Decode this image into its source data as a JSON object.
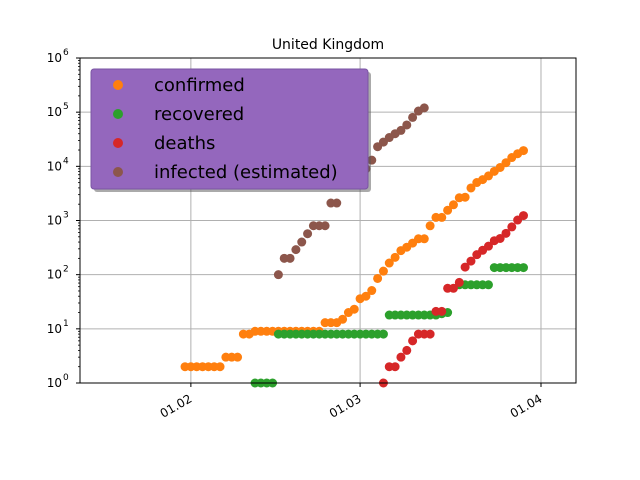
{
  "chart_data": {
    "type": "scatter",
    "title": "United Kingdom",
    "xlabel": "",
    "ylabel": "",
    "x_tick_labels": [
      "01.02",
      "01.03",
      "01.04"
    ],
    "yscale": "log",
    "ylim": [
      1,
      1000000
    ],
    "xlim": [
      "2020-01-13",
      "2020-04-07"
    ],
    "y_ticks": [
      {
        "base": "10",
        "exp": "0"
      },
      {
        "base": "10",
        "exp": "1"
      },
      {
        "base": "10",
        "exp": "2"
      },
      {
        "base": "10",
        "exp": "3"
      },
      {
        "base": "10",
        "exp": "4"
      },
      {
        "base": "10",
        "exp": "5"
      },
      {
        "base": "10",
        "exp": "6"
      }
    ],
    "grid": true,
    "legend_position": "top-left",
    "series": [
      {
        "name": "confirmed",
        "color": "#ff7f0e",
        "points": [
          [
            "2020-01-31",
            2
          ],
          [
            "2020-02-01",
            2
          ],
          [
            "2020-02-02",
            2
          ],
          [
            "2020-02-03",
            2
          ],
          [
            "2020-02-04",
            2
          ],
          [
            "2020-02-05",
            2
          ],
          [
            "2020-02-06",
            2
          ],
          [
            "2020-02-07",
            3
          ],
          [
            "2020-02-08",
            3
          ],
          [
            "2020-02-09",
            3
          ],
          [
            "2020-02-10",
            8
          ],
          [
            "2020-02-11",
            8
          ],
          [
            "2020-02-12",
            9
          ],
          [
            "2020-02-13",
            9
          ],
          [
            "2020-02-14",
            9
          ],
          [
            "2020-02-15",
            9
          ],
          [
            "2020-02-16",
            9
          ],
          [
            "2020-02-17",
            9
          ],
          [
            "2020-02-18",
            9
          ],
          [
            "2020-02-19",
            9
          ],
          [
            "2020-02-20",
            9
          ],
          [
            "2020-02-21",
            9
          ],
          [
            "2020-02-22",
            9
          ],
          [
            "2020-02-23",
            9
          ],
          [
            "2020-02-24",
            13
          ],
          [
            "2020-02-25",
            13
          ],
          [
            "2020-02-26",
            13
          ],
          [
            "2020-02-27",
            15
          ],
          [
            "2020-02-28",
            20
          ],
          [
            "2020-02-29",
            23
          ],
          [
            "2020-03-01",
            36
          ],
          [
            "2020-03-02",
            40
          ],
          [
            "2020-03-03",
            51
          ],
          [
            "2020-03-04",
            85
          ],
          [
            "2020-03-05",
            116
          ],
          [
            "2020-03-06",
            164
          ],
          [
            "2020-03-07",
            209
          ],
          [
            "2020-03-08",
            278
          ],
          [
            "2020-03-09",
            321
          ],
          [
            "2020-03-10",
            383
          ],
          [
            "2020-03-11",
            460
          ],
          [
            "2020-03-12",
            460
          ],
          [
            "2020-03-13",
            798
          ],
          [
            "2020-03-14",
            1140
          ],
          [
            "2020-03-15",
            1140
          ],
          [
            "2020-03-16",
            1543
          ],
          [
            "2020-03-17",
            1950
          ],
          [
            "2020-03-18",
            2626
          ],
          [
            "2020-03-19",
            2689
          ],
          [
            "2020-03-20",
            3983
          ],
          [
            "2020-03-21",
            5018
          ],
          [
            "2020-03-22",
            5683
          ],
          [
            "2020-03-23",
            6650
          ],
          [
            "2020-03-24",
            8077
          ],
          [
            "2020-03-25",
            9529
          ],
          [
            "2020-03-26",
            11658
          ],
          [
            "2020-03-27",
            14543
          ],
          [
            "2020-03-28",
            17089
          ],
          [
            "2020-03-29",
            19522
          ]
        ]
      },
      {
        "name": "recovered",
        "color": "#2ca02c",
        "points": [
          [
            "2020-02-12",
            1
          ],
          [
            "2020-02-13",
            1
          ],
          [
            "2020-02-14",
            1
          ],
          [
            "2020-02-15",
            1
          ],
          [
            "2020-02-16",
            8
          ],
          [
            "2020-02-17",
            8
          ],
          [
            "2020-02-18",
            8
          ],
          [
            "2020-02-19",
            8
          ],
          [
            "2020-02-20",
            8
          ],
          [
            "2020-02-21",
            8
          ],
          [
            "2020-02-22",
            8
          ],
          [
            "2020-02-23",
            8
          ],
          [
            "2020-02-24",
            8
          ],
          [
            "2020-02-25",
            8
          ],
          [
            "2020-02-26",
            8
          ],
          [
            "2020-02-27",
            8
          ],
          [
            "2020-02-28",
            8
          ],
          [
            "2020-02-29",
            8
          ],
          [
            "2020-03-01",
            8
          ],
          [
            "2020-03-02",
            8
          ],
          [
            "2020-03-03",
            8
          ],
          [
            "2020-03-04",
            8
          ],
          [
            "2020-03-05",
            8
          ],
          [
            "2020-03-06",
            18
          ],
          [
            "2020-03-07",
            18
          ],
          [
            "2020-03-08",
            18
          ],
          [
            "2020-03-09",
            18
          ],
          [
            "2020-03-10",
            18
          ],
          [
            "2020-03-11",
            18
          ],
          [
            "2020-03-12",
            18
          ],
          [
            "2020-03-13",
            18
          ],
          [
            "2020-03-14",
            18
          ],
          [
            "2020-03-15",
            19
          ],
          [
            "2020-03-16",
            20
          ],
          [
            "2020-03-18",
            65
          ],
          [
            "2020-03-19",
            65
          ],
          [
            "2020-03-20",
            65
          ],
          [
            "2020-03-21",
            65
          ],
          [
            "2020-03-22",
            65
          ],
          [
            "2020-03-23",
            65
          ],
          [
            "2020-03-24",
            135
          ],
          [
            "2020-03-25",
            135
          ],
          [
            "2020-03-26",
            135
          ],
          [
            "2020-03-27",
            135
          ],
          [
            "2020-03-28",
            135
          ],
          [
            "2020-03-29",
            135
          ]
        ]
      },
      {
        "name": "deaths",
        "color": "#d62728",
        "points": [
          [
            "2020-03-05",
            1
          ],
          [
            "2020-03-06",
            2
          ],
          [
            "2020-03-07",
            2
          ],
          [
            "2020-03-08",
            3
          ],
          [
            "2020-03-09",
            4
          ],
          [
            "2020-03-10",
            6
          ],
          [
            "2020-03-11",
            8
          ],
          [
            "2020-03-12",
            8
          ],
          [
            "2020-03-13",
            8
          ],
          [
            "2020-03-14",
            21
          ],
          [
            "2020-03-15",
            21
          ],
          [
            "2020-03-16",
            56
          ],
          [
            "2020-03-17",
            56
          ],
          [
            "2020-03-18",
            72
          ],
          [
            "2020-03-19",
            138
          ],
          [
            "2020-03-20",
            178
          ],
          [
            "2020-03-21",
            234
          ],
          [
            "2020-03-22",
            282
          ],
          [
            "2020-03-23",
            336
          ],
          [
            "2020-03-24",
            423
          ],
          [
            "2020-03-25",
            466
          ],
          [
            "2020-03-26",
            580
          ],
          [
            "2020-03-27",
            761
          ],
          [
            "2020-03-28",
            1021
          ],
          [
            "2020-03-29",
            1231
          ]
        ]
      },
      {
        "name": "infected (estimated)",
        "color": "#8c564b",
        "points": [
          [
            "2020-02-16",
            100
          ],
          [
            "2020-02-17",
            200
          ],
          [
            "2020-02-18",
            200
          ],
          [
            "2020-02-19",
            290
          ],
          [
            "2020-02-20",
            400
          ],
          [
            "2020-02-21",
            570
          ],
          [
            "2020-02-22",
            800
          ],
          [
            "2020-02-23",
            800
          ],
          [
            "2020-02-24",
            800
          ],
          [
            "2020-02-25",
            2100
          ],
          [
            "2020-02-26",
            2100
          ],
          [
            "2020-03-02",
            9000
          ],
          [
            "2020-03-03",
            13000
          ],
          [
            "2020-03-04",
            23000
          ],
          [
            "2020-03-05",
            28000
          ],
          [
            "2020-03-06",
            34000
          ],
          [
            "2020-03-07",
            40000
          ],
          [
            "2020-03-08",
            46000
          ],
          [
            "2020-03-09",
            58000
          ],
          [
            "2020-03-10",
            80000
          ],
          [
            "2020-03-11",
            105000
          ],
          [
            "2020-03-12",
            120000
          ]
        ]
      }
    ]
  }
}
